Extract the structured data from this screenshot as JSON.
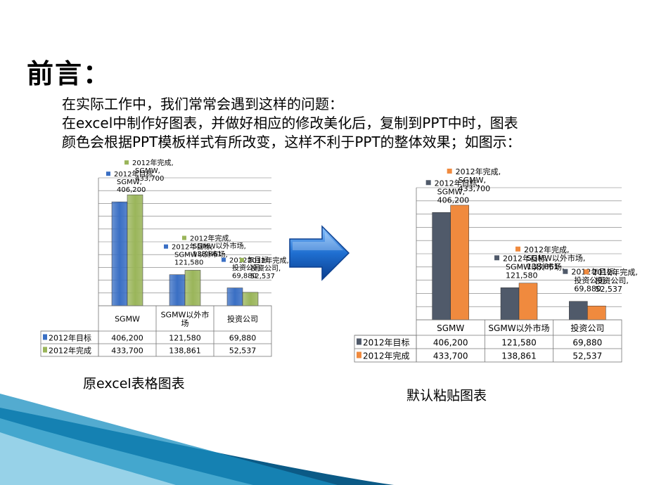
{
  "slide": {
    "title": "前言：",
    "intro_lines": [
      "在实际工作中，我们常常会遇到这样的问题：",
      "在excel中制作好图表，并做好相应的修改美化后，复制到PPT中时，图表",
      "颜色会根据PPT模板样式有所改变，这样不利于PPT的整体效果；如图示："
    ],
    "left_caption": "原excel表格图表",
    "right_caption": "默认粘贴图表"
  },
  "chart_data": [
    {
      "type": "bar",
      "categories": [
        "SGMW",
        "SGMW以外市场",
        "投资公司"
      ],
      "category_labels": [
        "SGMW",
        "SGMW以外市\n场",
        "投资公司"
      ],
      "series": [
        {
          "name": "2012年目标",
          "values": [
            406200,
            121580,
            69880
          ],
          "labels": [
            "406,200",
            "121,580",
            "69,880"
          ],
          "color": "#3a6fc4"
        },
        {
          "name": "2012年完成",
          "values": [
            433700,
            138861,
            52537
          ],
          "labels": [
            "433,700",
            "138,861",
            "52,537"
          ],
          "color": "#9ab55a"
        }
      ],
      "ylim": [
        0,
        500000
      ],
      "grid": true,
      "legend": "data-table"
    },
    {
      "type": "bar",
      "categories": [
        "SGMW",
        "SGMW以外市场",
        "投资公司"
      ],
      "category_labels": [
        "SGMW",
        "SGMW以外市场",
        "投资公司"
      ],
      "series": [
        {
          "name": "2012年目标",
          "values": [
            406200,
            121580,
            69880
          ],
          "labels": [
            "406,200",
            "121,580",
            "69,880"
          ],
          "color": "#505a6a"
        },
        {
          "name": "2012年完成",
          "values": [
            433700,
            138861,
            52537
          ],
          "labels": [
            "433,700",
            "138,861",
            "52,537"
          ],
          "color": "#f08a3e"
        }
      ],
      "ylim": [
        0,
        500000
      ],
      "grid": true,
      "legend": "data-table"
    }
  ],
  "arrow": {
    "color": "#1f6fd1"
  }
}
